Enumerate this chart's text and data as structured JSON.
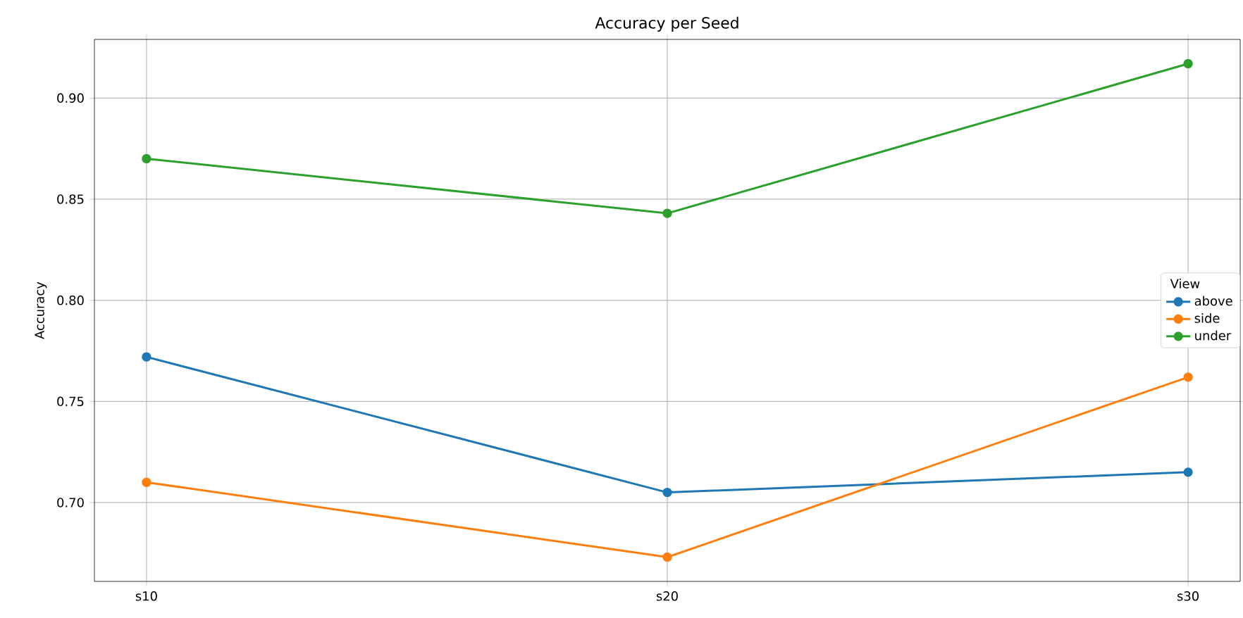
{
  "chart_data": {
    "type": "line",
    "title": "Accuracy per Seed",
    "ylabel": "Accuracy",
    "legend_title": "View",
    "categories": [
      "s10",
      "s20",
      "s30"
    ],
    "series": [
      {
        "name": "above",
        "color": "#1f77b4",
        "values": [
          0.772,
          0.705,
          0.715
        ]
      },
      {
        "name": "side",
        "color": "#ff7f0e",
        "values": [
          0.71,
          0.673,
          0.762
        ]
      },
      {
        "name": "under",
        "color": "#2ca02c",
        "values": [
          0.87,
          0.843,
          0.917
        ]
      }
    ],
    "ylim": [
      0.661,
      0.929
    ],
    "yticks": [
      {
        "value": 0.7,
        "label": "0.70"
      },
      {
        "value": 0.75,
        "label": "0.75"
      },
      {
        "value": 0.8,
        "label": "0.80"
      },
      {
        "value": 0.85,
        "label": "0.85"
      },
      {
        "value": 0.9,
        "label": "0.90"
      }
    ],
    "grid": true,
    "legend": "right",
    "marker": "circle",
    "line_style": "solid"
  }
}
